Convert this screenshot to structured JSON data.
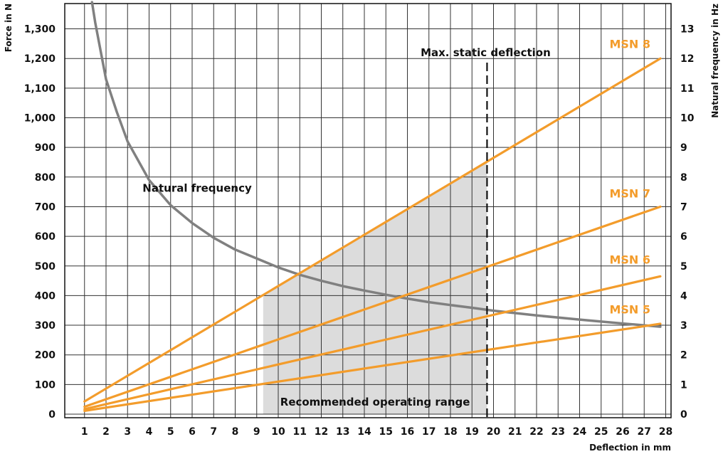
{
  "chart_data": {
    "type": "line",
    "xlabel": "Deflection in mm",
    "ylabel": "Force in N",
    "y2label": "Natural frequency in Hz",
    "xlim": [
      0,
      28.5
    ],
    "ylim": [
      0,
      1400
    ],
    "y2lim": [
      0,
      14
    ],
    "x_ticks": [
      "1",
      "2",
      "3",
      "4",
      "5",
      "6",
      "7",
      "8",
      "9",
      "10",
      "11",
      "12",
      "13",
      "14",
      "15",
      "16",
      "17",
      "18",
      "19",
      "20",
      "21",
      "22",
      "23",
      "24",
      "25",
      "26",
      "27",
      "28"
    ],
    "y_ticks": [
      "0",
      "100",
      "200",
      "300",
      "400",
      "500",
      "600",
      "700",
      "800",
      "900",
      "1,000",
      "1,100",
      "1,200",
      "1,300"
    ],
    "y2_ticks": [
      "0",
      "1",
      "2",
      "3",
      "4",
      "5",
      "6",
      "7",
      "8",
      "9",
      "10",
      "11",
      "12",
      "13"
    ],
    "grid": true,
    "colors": {
      "series": "#f39c2b",
      "frequency": "#808080",
      "range_fill": "#dcdcdc",
      "grid": "#333333"
    },
    "series": [
      {
        "name": "MSN 8",
        "axis": "left",
        "x": [
          1,
          27.75
        ],
        "values": [
          43,
          1200
        ]
      },
      {
        "name": "MSN 7",
        "axis": "left",
        "x": [
          1,
          27.75
        ],
        "values": [
          25,
          700
        ]
      },
      {
        "name": "MSN 6",
        "axis": "left",
        "x": [
          1,
          27.75
        ],
        "values": [
          17,
          465
        ]
      },
      {
        "name": "MSN 5",
        "axis": "left",
        "x": [
          1,
          27.75
        ],
        "values": [
          11,
          305
        ]
      }
    ],
    "natural_frequency": {
      "label": "Natural frequency",
      "axis": "right",
      "x": [
        1.35,
        1.5,
        2,
        2.5,
        3,
        4,
        5,
        6,
        7,
        8,
        9,
        10,
        11,
        12,
        13,
        14,
        15,
        16,
        17,
        18,
        19,
        20,
        22,
        24,
        26,
        27.75
      ],
      "values": [
        13.9,
        13.2,
        11.3,
        10.2,
        9.2,
        7.9,
        7.05,
        6.45,
        5.95,
        5.55,
        5.25,
        4.95,
        4.7,
        4.5,
        4.32,
        4.17,
        4.03,
        3.9,
        3.78,
        3.68,
        3.59,
        3.49,
        3.33,
        3.19,
        3.06,
        2.95
      ]
    },
    "max_static_deflection": {
      "label": "Max. static deflection",
      "x": 19.7
    },
    "recommended_range": {
      "label": "Recommended operating range",
      "x": [
        9.3,
        19.7
      ]
    },
    "annotations": {
      "nat_label_pos": [
        3.2,
        7.6
      ]
    }
  }
}
